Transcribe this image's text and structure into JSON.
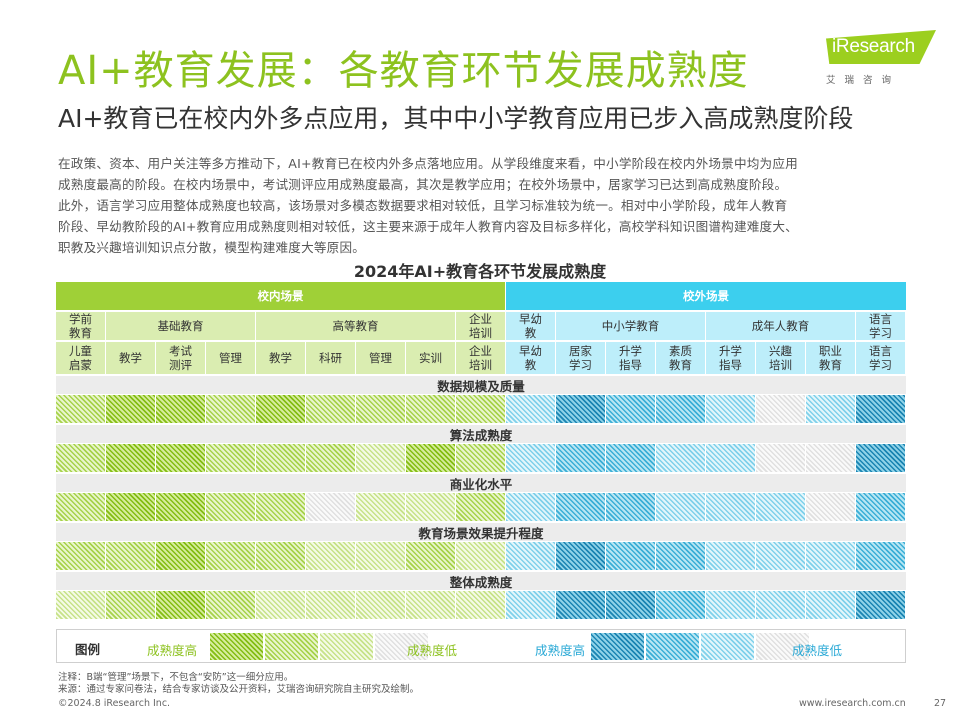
{
  "title": "AI+教育发展：各教育环节发展成熟度",
  "subtitle": "AI+教育已在校内外多点应用，其中中小学教育应用已步入高成熟度阶段",
  "body_lines": [
    "在政策、资本、用户关注等多方推动下，AI+教育已在校内外多点落地应用。从学段维度来看，中小学阶段在校内外场景中均为应用",
    "成熟度最高的阶段。在校内场景中，考试测评应用成熟度最高，其次是教学应用；在校外场景中，居家学习已达到高成熟度阶段。",
    "此外，语言学习应用整体成熟度也较高，该场景对多模态数据要求相对较低，且学习标准较为统一。相对中小学阶段，成年人教育",
    "阶段、早幼教阶段的AI+教育应用成熟度则相对较低，这主要来源于成年人教育内容及目标多样化，高校学科知识图谱构建难度大、",
    "职教及兴趣培训知识点分散，模型构建难度大等原因。"
  ],
  "logo": {
    "text": "iResearch",
    "sub": "艾瑞咨询"
  },
  "chart_title": "2024年AI+教育各环节发展成熟度",
  "header_top": {
    "in": "校内场景",
    "out": "校外场景"
  },
  "header_mid": [
    {
      "label": "学前\n教育"
    },
    {
      "label": "基础教育"
    },
    {
      "label": "高等教育"
    },
    {
      "label": "企业\n培训"
    },
    {
      "label": "早幼\n教"
    },
    {
      "label": "中小学教育"
    },
    {
      "label": "成年人教育"
    },
    {
      "label": "语言\n学习"
    }
  ],
  "columns": [
    "儿童\n启蒙",
    "教学",
    "考试\n测评",
    "管理",
    "教学",
    "科研",
    "管理",
    "实训",
    "企业\n培训",
    "早幼\n教",
    "居家\n学习",
    "升学\n指导",
    "素质\n教育",
    "升学\n指导",
    "兴趣\n培训",
    "职业\n教育",
    "语言\n学习"
  ],
  "dimensions": [
    {
      "label": "数据规模及质量",
      "levels": [
        2,
        1,
        1,
        2,
        1,
        2,
        2,
        2,
        2,
        3,
        1,
        2,
        2,
        3,
        4,
        3,
        1
      ]
    },
    {
      "label": "算法成熟度",
      "levels": [
        2,
        1,
        1,
        2,
        2,
        2,
        3,
        1,
        2,
        3,
        2,
        2,
        3,
        3,
        4,
        4,
        1
      ]
    },
    {
      "label": "商业化水平",
      "levels": [
        2,
        1,
        1,
        2,
        2,
        4,
        3,
        3,
        2,
        3,
        2,
        2,
        3,
        3,
        3,
        4,
        2
      ]
    },
    {
      "label": "教育场景效果提升程度",
      "levels": [
        2,
        2,
        1,
        2,
        2,
        3,
        3,
        2,
        3,
        3,
        1,
        2,
        2,
        3,
        3,
        3,
        2
      ]
    },
    {
      "label": "整体成熟度",
      "levels": [
        3,
        2,
        1,
        2,
        3,
        3,
        3,
        3,
        3,
        3,
        1,
        1,
        2,
        3,
        3,
        3,
        1
      ]
    }
  ],
  "legend": {
    "title": "图例",
    "green_high": "成熟度高",
    "green_low": "成熟度低",
    "blue_high": "成熟度高",
    "blue_low": "成熟度低"
  },
  "notes": {
    "note1": "注释：B端“管理”场景下，不包含“安防”这一细分应用。",
    "note2": "来源：通过专家问卷法，结合专家访谈及公开资料，艾瑞咨询研究院自主研究及绘制。"
  },
  "footer": {
    "copyright": "©2024.8 iResearch Inc.",
    "site": "www.iresearch.com.cn",
    "page": "27"
  },
  "colors": {
    "green_accent": "#8dc21f",
    "blue_accent": "#3ccfee"
  }
}
